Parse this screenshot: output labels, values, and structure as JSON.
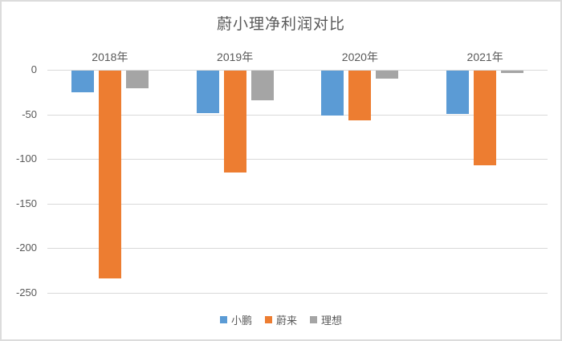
{
  "frame": {
    "background_color": "#ffffff",
    "border_color": "#dcdcdc"
  },
  "chart_data": {
    "type": "bar",
    "title": "蔚小理净利润对比",
    "categories": [
      "2018年",
      "2019年",
      "2020年",
      "2021年"
    ],
    "series": [
      {
        "name": "小鹏",
        "color": "#5B9BD5",
        "values": [
          -24,
          -48,
          -50,
          -49
        ]
      },
      {
        "name": "蔚来",
        "color": "#ED7D31",
        "values": [
          -233,
          -114,
          -56,
          -106
        ]
      },
      {
        "name": "理想",
        "color": "#A5A5A5",
        "values": [
          -20,
          -33,
          -9,
          -3
        ]
      }
    ],
    "y_axis": {
      "ticks": [
        0,
        -50,
        -100,
        -150,
        -200,
        -250
      ],
      "min": -250,
      "max": 0,
      "tick_labels": [
        "0",
        "-50",
        "-100",
        "-150",
        "-200",
        "-250"
      ]
    },
    "grid": true,
    "gridline_color": "#d9d9d9",
    "text_color": "#595959",
    "legend_position": "bottom"
  }
}
